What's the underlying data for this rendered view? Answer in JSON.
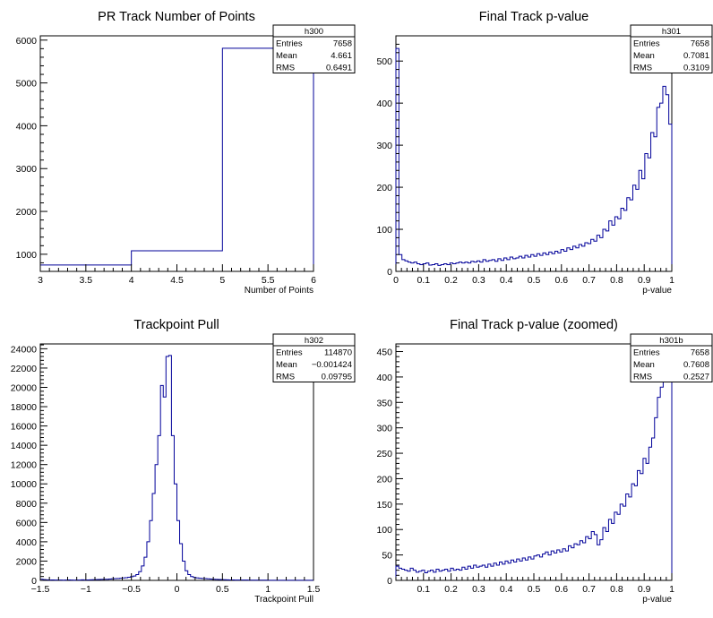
{
  "chart_data": [
    {
      "type": "bar",
      "title": "PR Track Number of Points",
      "xlabel": "Number of Points",
      "xlim": [
        3,
        6
      ],
      "ylim": [
        600,
        6100
      ],
      "xticks": [
        "3",
        "3.5",
        "4",
        "4.5",
        "5",
        "5.5",
        "6"
      ],
      "yticks": [
        "1000",
        "2000",
        "3000",
        "4000",
        "5000",
        "6000"
      ],
      "bin_edges": [
        3,
        4,
        5,
        6
      ],
      "values": [
        750,
        1080,
        5810
      ],
      "stats": {
        "name": "h300",
        "entries": "7658",
        "mean": "4.661",
        "rms": "0.6491"
      },
      "stats_labels": {
        "entries": "Entries",
        "mean": "Mean",
        "rms": "RMS"
      }
    },
    {
      "type": "bar",
      "title": "Final Track p-value",
      "xlabel": "p-value",
      "xlim": [
        0,
        1
      ],
      "ylim": [
        0,
        560
      ],
      "xticks": [
        "0",
        "0.1",
        "0.2",
        "0.3",
        "0.4",
        "0.5",
        "0.6",
        "0.7",
        "0.8",
        "0.9",
        "1"
      ],
      "yticks": [
        "0",
        "100",
        "200",
        "300",
        "400",
        "500"
      ],
      "bin_edges_range": [
        0,
        1
      ],
      "values": [
        530,
        40,
        28,
        25,
        22,
        20,
        22,
        18,
        16,
        18,
        20,
        15,
        16,
        18,
        14,
        16,
        18,
        16,
        20,
        18,
        20,
        22,
        20,
        22,
        20,
        24,
        22,
        25,
        22,
        28,
        24,
        26,
        28,
        24,
        30,
        26,
        32,
        28,
        34,
        30,
        32,
        36,
        32,
        38,
        34,
        40,
        36,
        42,
        38,
        44,
        40,
        46,
        42,
        48,
        44,
        52,
        48,
        56,
        52,
        60,
        56,
        64,
        60,
        68,
        66,
        76,
        72,
        86,
        80,
        100,
        96,
        120,
        110,
        130,
        125,
        150,
        145,
        175,
        170,
        205,
        195,
        240,
        220,
        280,
        270,
        330,
        320,
        390,
        400,
        440,
        420,
        350
      ],
      "stats": {
        "name": "h301",
        "entries": "7658",
        "mean": "0.7081",
        "rms": "0.3109"
      },
      "stats_labels": {
        "entries": "Entries",
        "mean": "Mean",
        "rms": "RMS"
      }
    },
    {
      "type": "bar",
      "title": "Trackpoint Pull",
      "xlabel": "Trackpoint Pull",
      "xlim": [
        -1.5,
        1.5
      ],
      "ylim": [
        0,
        24500
      ],
      "xticks": [
        "-1.5",
        "-1",
        "-0.5",
        "0",
        "0.5",
        "1",
        "1.5"
      ],
      "yticks": [
        "0",
        "2000",
        "4000",
        "6000",
        "8000",
        "10000",
        "12000",
        "14000",
        "16000",
        "18000",
        "20000",
        "22000",
        "24000"
      ],
      "bin_edges_range": [
        -1.5,
        1.5
      ],
      "values": [
        120,
        80,
        60,
        40,
        50,
        30,
        40,
        30,
        20,
        40,
        50,
        30,
        20,
        30,
        40,
        60,
        40,
        50,
        60,
        70,
        80,
        90,
        100,
        110,
        120,
        140,
        160,
        180,
        200,
        220,
        250,
        280,
        320,
        380,
        450,
        600,
        900,
        1500,
        2400,
        4000,
        6200,
        9000,
        12000,
        15000,
        20200,
        19000,
        23200,
        23300,
        15000,
        10000,
        6200,
        3800,
        2000,
        1000,
        600,
        400,
        300,
        250,
        220,
        200,
        180,
        160,
        140,
        120,
        100,
        90,
        80,
        70,
        60,
        50,
        50,
        40,
        40,
        30,
        30,
        30,
        20,
        20,
        20,
        20,
        20,
        20,
        20,
        10,
        10,
        10,
        10,
        10,
        10,
        10,
        10,
        10,
        10,
        10,
        10,
        10,
        10,
        10,
        10,
        10
      ],
      "stats": {
        "name": "h302",
        "entries": "114870",
        "mean": "−0.001424",
        "rms": "0.09795"
      },
      "stats_labels": {
        "entries": "Entries",
        "mean": "Mean",
        "rms": "RMS"
      }
    },
    {
      "type": "bar",
      "title": "Final Track p-value (zoomed)",
      "xlabel": "p-value",
      "xlim": [
        0,
        1
      ],
      "ylim": [
        0,
        465
      ],
      "xticks": [
        "0.1",
        "0.2",
        "0.3",
        "0.4",
        "0.5",
        "0.6",
        "0.7",
        "0.8",
        "0.9",
        "1"
      ],
      "yticks": [
        "0",
        "50",
        "100",
        "150",
        "200",
        "250",
        "300",
        "350",
        "400",
        "450"
      ],
      "bin_edges_range": [
        0,
        1
      ],
      "values": [
        28,
        24,
        22,
        20,
        18,
        24,
        20,
        16,
        18,
        20,
        15,
        18,
        20,
        16,
        22,
        18,
        20,
        22,
        18,
        24,
        20,
        22,
        20,
        26,
        22,
        28,
        24,
        30,
        26,
        28,
        30,
        26,
        32,
        28,
        34,
        30,
        36,
        32,
        38,
        34,
        40,
        36,
        42,
        38,
        44,
        40,
        46,
        42,
        48,
        50,
        46,
        52,
        56,
        50,
        58,
        54,
        60,
        56,
        62,
        58,
        68,
        64,
        72,
        70,
        78,
        74,
        86,
        82,
        96,
        90,
        70,
        80,
        104,
        96,
        120,
        112,
        134,
        130,
        150,
        146,
        170,
        164,
        190,
        186,
        216,
        210,
        240,
        230,
        262,
        280,
        320,
        360,
        380,
        420,
        450,
        400
      ],
      "stats": {
        "name": "h301b",
        "entries": "7658",
        "mean": "0.7608",
        "rms": "0.2527"
      },
      "stats_labels": {
        "entries": "Entries",
        "mean": "Mean",
        "rms": "RMS"
      }
    }
  ]
}
